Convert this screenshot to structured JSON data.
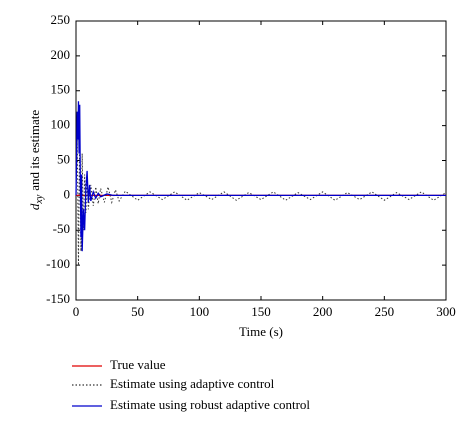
{
  "chart_data": {
    "type": "line",
    "x_label": "Time (s)",
    "y_label": {
      "symbol": "d",
      "subscript": "xy",
      "text": "and its estimate"
    },
    "xlim": [
      0,
      300
    ],
    "xticks": [
      0,
      50,
      100,
      150,
      200,
      250,
      300
    ],
    "ylim": [
      -150,
      250
    ],
    "yticks": [
      -150,
      -100,
      -50,
      0,
      50,
      100,
      150,
      200,
      250
    ],
    "series": [
      {
        "name": "True value",
        "color": "#e00000",
        "style": "solid",
        "x": [
          0,
          300
        ],
        "values": [
          0,
          0
        ]
      },
      {
        "name": "Estimate using adaptive control",
        "color": "#333333",
        "style": "dotted",
        "x": [
          0,
          1,
          2,
          3,
          4,
          5,
          6,
          7,
          8,
          9,
          10,
          12,
          14,
          16,
          18,
          20,
          23,
          26,
          29,
          32,
          35,
          40,
          50,
          60,
          70,
          80,
          90,
          100,
          110,
          120,
          130,
          140,
          150,
          160,
          170,
          180,
          190,
          200,
          210,
          220,
          230,
          240,
          250,
          260,
          270,
          280,
          290,
          300
        ],
        "values": [
          0,
          80,
          -100,
          95,
          -80,
          60,
          -50,
          30,
          -25,
          20,
          -20,
          15,
          -15,
          12,
          -12,
          10,
          -10,
          12,
          -10,
          8,
          -8,
          6,
          -7,
          5,
          -6,
          5,
          -7,
          4,
          -6,
          5,
          -7,
          4,
          -6,
          5,
          -7,
          4,
          -6,
          5,
          -7,
          4,
          -6,
          5,
          -7,
          4,
          -6,
          5,
          -7,
          4
        ]
      },
      {
        "name": "Estimate using robust adaptive control",
        "color": "#0000cc",
        "style": "solid",
        "x": [
          0,
          1,
          1.5,
          2,
          2.5,
          3,
          3.5,
          4,
          4.5,
          5,
          6,
          7,
          8,
          9,
          10,
          11,
          12,
          14,
          16,
          18,
          20,
          25,
          30,
          300
        ],
        "values": [
          0,
          120,
          80,
          135,
          60,
          130,
          20,
          -60,
          30,
          -80,
          -20,
          -50,
          10,
          35,
          -10,
          15,
          -8,
          5,
          -4,
          3,
          -2,
          2,
          0,
          0
        ]
      }
    ]
  }
}
